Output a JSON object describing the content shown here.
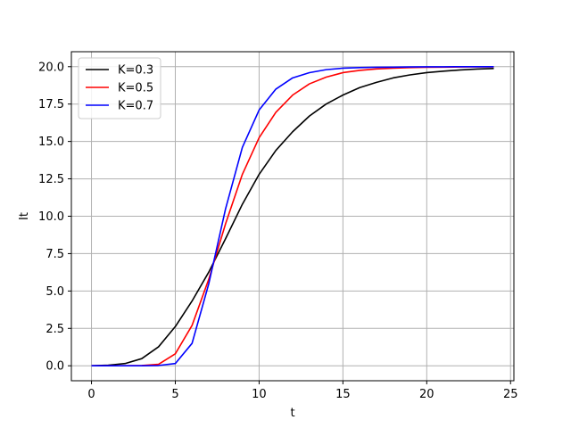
{
  "chart_data": {
    "type": "line",
    "title": "",
    "xlabel": "t",
    "ylabel": "It",
    "xlim": [
      -1.2,
      25.2
    ],
    "ylim": [
      -1.0,
      21.0
    ],
    "xticks": [
      0,
      5,
      10,
      15,
      20,
      25
    ],
    "yticks": [
      0.0,
      2.5,
      5.0,
      7.5,
      10.0,
      12.5,
      15.0,
      17.5,
      20.0
    ],
    "xtick_labels": [
      "0",
      "5",
      "10",
      "15",
      "20",
      "25"
    ],
    "ytick_labels": [
      "0.0",
      "2.5",
      "5.0",
      "7.5",
      "10.0",
      "12.5",
      "15.0",
      "17.5",
      "20.0"
    ],
    "grid": true,
    "legend_position": "top-left",
    "x": [
      0,
      1,
      2,
      3,
      4,
      5,
      6,
      7,
      8,
      9,
      10,
      11,
      12,
      13,
      14,
      15,
      16,
      17,
      18,
      19,
      20,
      21,
      22,
      23,
      24
    ],
    "series": [
      {
        "name": "K=0.3",
        "color": "#000000",
        "values": [
          0.0,
          0.04,
          0.15,
          0.48,
          1.27,
          2.62,
          4.33,
          6.27,
          8.5,
          10.8,
          12.8,
          14.4,
          15.65,
          16.7,
          17.5,
          18.1,
          18.6,
          18.95,
          19.25,
          19.45,
          19.6,
          19.7,
          19.78,
          19.84,
          19.88
        ]
      },
      {
        "name": "K=0.5",
        "color": "#ff0000",
        "values": [
          0.0,
          0.0,
          0.0,
          0.02,
          0.1,
          0.8,
          2.7,
          5.8,
          9.5,
          12.8,
          15.25,
          16.95,
          18.1,
          18.85,
          19.3,
          19.6,
          19.75,
          19.85,
          19.9,
          19.94,
          19.96,
          19.97,
          19.98,
          19.99,
          19.99
        ]
      },
      {
        "name": "K=0.7",
        "color": "#0000ff",
        "values": [
          0.0,
          0.0,
          0.0,
          0.0,
          0.02,
          0.15,
          1.5,
          5.5,
          10.5,
          14.6,
          17.1,
          18.5,
          19.25,
          19.6,
          19.8,
          19.9,
          19.94,
          19.96,
          19.97,
          19.98,
          19.99,
          19.99,
          20.0,
          20.0,
          20.0
        ]
      }
    ]
  }
}
